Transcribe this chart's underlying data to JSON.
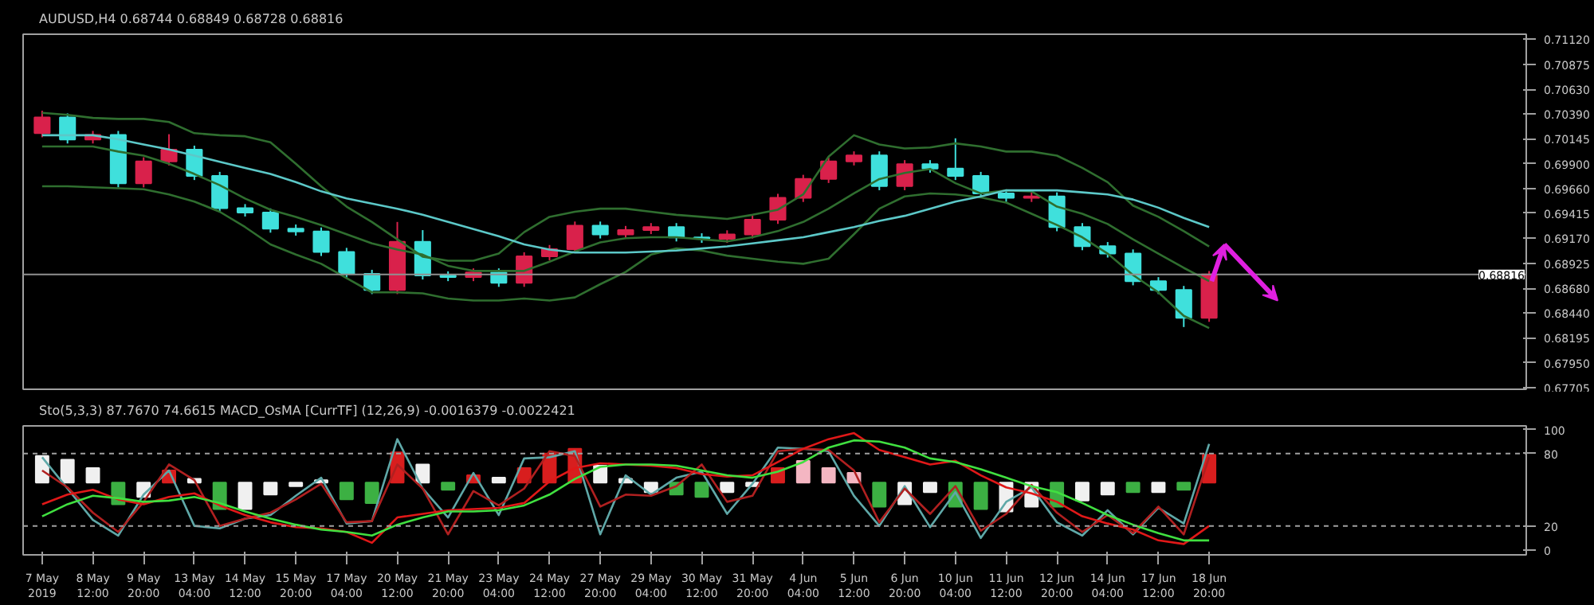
{
  "chart_data": [
    {
      "type": "candlestick",
      "title": "AUDUSD,H4  0.68744 0.68849 0.68728 0.68816",
      "ylim": [
        0.6769,
        0.7117
      ],
      "tick_labels": "y",
      "categories": [
        null,
        null,
        null,
        null,
        null,
        null,
        null,
        null,
        null,
        null,
        null,
        null,
        null,
        null,
        null,
        null,
        null,
        null,
        null,
        null,
        null,
        null,
        null,
        null,
        null,
        null,
        null,
        null,
        null,
        null,
        null,
        null,
        null,
        null,
        null,
        null,
        null,
        null,
        null,
        null,
        null,
        null,
        null,
        null,
        null,
        null,
        null
      ],
      "yticks": [
        {
          "value": 0.7112,
          "label": "0.71120"
        },
        0.70875,
        {
          "value": 0.7063,
          "label": "0.70630"
        },
        {
          "value": 0.7039,
          "label": "0.70390"
        },
        0.70145,
        {
          "value": 0.699,
          "label": "0.69900"
        },
        {
          "value": 0.6966,
          "label": "0.69660"
        },
        0.69415,
        {
          "value": 0.6917,
          "label": "0.69170"
        },
        0.68925,
        {
          "value": 0.6868,
          "label": "0.68680"
        },
        {
          "value": 0.6844,
          "label": "0.68440"
        },
        0.68195,
        {
          "value": 0.6795,
          "label": "0.67950"
        },
        0.67705
      ],
      "ref_lines": [
        {
          "axis": "y",
          "value": 0.68816,
          "label": "0.68816",
          "color": "#909090"
        }
      ],
      "ohlc": [
        [
          0.702,
          0.7042,
          0.7016,
          0.70354
        ],
        [
          0.70354,
          0.70394,
          0.70099,
          0.70139
        ],
        [
          0.70139,
          0.70222,
          0.70099,
          0.70182
        ],
        [
          0.70182,
          0.70222,
          0.69669,
          0.69709
        ],
        [
          0.69709,
          0.69964,
          0.69669,
          0.69924
        ],
        [
          0.69924,
          0.7019,
          0.69884,
          0.70038
        ],
        [
          0.70038,
          0.70078,
          0.69741,
          0.69781
        ],
        [
          0.69781,
          0.69821,
          0.69425,
          0.69465
        ],
        [
          0.69465,
          0.69505,
          0.69383,
          0.69423
        ],
        [
          0.69423,
          0.69463,
          0.69225,
          0.69265
        ],
        [
          0.69265,
          0.69305,
          0.69196,
          0.69236
        ],
        [
          0.69236,
          0.69276,
          0.68996,
          0.69036
        ],
        [
          0.69036,
          0.69076,
          0.68781,
          0.68821
        ],
        [
          0.68821,
          0.68861,
          0.68623,
          0.68663
        ],
        [
          0.68663,
          0.6933,
          0.68623,
          0.69136
        ],
        [
          0.69136,
          0.6925,
          0.68766,
          0.68806
        ],
        [
          0.68806,
          0.68846,
          0.6875,
          0.6879
        ],
        [
          0.6879,
          0.68875,
          0.6875,
          0.68835
        ],
        [
          0.68835,
          0.68875,
          0.68694,
          0.68734
        ],
        [
          0.68734,
          0.69033,
          0.68694,
          0.68993
        ],
        [
          0.68993,
          0.69104,
          0.68953,
          0.69064
        ],
        [
          0.69064,
          0.69334,
          0.69024,
          0.69294
        ],
        [
          0.69294,
          0.69334,
          0.69168,
          0.69208
        ],
        [
          0.69208,
          0.69291,
          0.69168,
          0.69251
        ],
        [
          0.69251,
          0.69319,
          0.69211,
          0.69279
        ],
        [
          0.69279,
          0.69319,
          0.69139,
          0.69179
        ],
        [
          0.69179,
          0.69219,
          0.69125,
          0.69165
        ],
        [
          0.69165,
          0.69248,
          0.69125,
          0.69208
        ],
        [
          0.69208,
          0.69391,
          0.69168,
          0.69351
        ],
        [
          0.69351,
          0.69606,
          0.69311,
          0.69566
        ],
        [
          0.69566,
          0.69792,
          0.69526,
          0.69752
        ],
        [
          0.69752,
          0.69964,
          0.69712,
          0.69924
        ],
        [
          0.69924,
          0.70022,
          0.69884,
          0.69982
        ],
        [
          0.69982,
          0.70022,
          0.69641,
          0.69681
        ],
        [
          0.69681,
          0.69936,
          0.69641,
          0.69896
        ],
        [
          0.69896,
          0.69936,
          0.69813,
          0.69853
        ],
        [
          0.69853,
          0.7015,
          0.69741,
          0.69781
        ],
        [
          0.69781,
          0.69821,
          0.69569,
          0.69609
        ],
        [
          0.69609,
          0.69649,
          0.69526,
          0.69566
        ],
        [
          0.69566,
          0.6962,
          0.69526,
          0.6958
        ],
        [
          0.6958,
          0.6962,
          0.69239,
          0.69279
        ],
        [
          0.69279,
          0.69319,
          0.69053,
          0.69093
        ],
        [
          0.69093,
          0.69133,
          0.68981,
          0.69021
        ],
        [
          0.69021,
          0.69061,
          0.68709,
          0.68749
        ],
        [
          0.68749,
          0.68789,
          0.68623,
          0.68663
        ],
        [
          0.68663,
          0.68703,
          0.683,
          0.68391
        ],
        [
          0.68391,
          0.68849,
          0.68351,
          0.68816
        ]
      ],
      "colors": [
        "#d9214b",
        "#3fe0dc",
        "#d9214b",
        "#3fe0dc",
        "#d9214b",
        "#d9214b",
        "#3fe0dc",
        "#3fe0dc",
        "#3fe0dc",
        "#3fe0dc",
        "#3fe0dc",
        "#3fe0dc",
        "#3fe0dc",
        "#3fe0dc",
        "#d9214b",
        "#3fe0dc",
        "#3fe0dc",
        "#d9214b",
        "#3fe0dc",
        "#d9214b",
        "#d9214b",
        "#d9214b",
        "#3fe0dc",
        "#d9214b",
        "#d9214b",
        "#3fe0dc",
        "#3fe0dc",
        "#d9214b",
        "#d9214b",
        "#d9214b",
        "#d9214b",
        "#d9214b",
        "#d9214b",
        "#3fe0dc",
        "#d9214b",
        "#3fe0dc",
        "#3fe0dc",
        "#3fe0dc",
        "#3fe0dc",
        "#d9214b",
        "#3fe0dc",
        "#3fe0dc",
        "#3fe0dc",
        "#3fe0dc",
        "#3fe0dc",
        "#3fe0dc",
        "#d9214b"
      ],
      "series": [
        {
          "type": "line",
          "color": "#2f6e2f",
          "values": [
            0.704,
            0.7038,
            0.7035,
            0.7034,
            0.7034,
            0.7031,
            0.702,
            0.7018,
            0.7017,
            0.7011,
            0.699,
            0.6968,
            0.6948,
            0.6933,
            0.6916,
            0.6899,
            0.6895,
            0.6895,
            0.6902,
            0.6923,
            0.6938,
            0.6943,
            0.6946,
            0.6946,
            0.6943,
            0.694,
            0.6938,
            0.6936,
            0.694,
            0.6945,
            0.696,
            0.6997,
            0.7018,
            0.7009,
            0.7005,
            0.7006,
            0.701,
            0.7007,
            0.7002,
            0.7002,
            0.6998,
            0.6986,
            0.6972,
            0.6949,
            0.6938,
            0.6924,
            0.6909
          ]
        },
        {
          "type": "line",
          "color": "#2f6e2f",
          "values": [
            0.6968,
            0.6968,
            0.6967,
            0.6966,
            0.6965,
            0.696,
            0.6953,
            0.6943,
            0.6928,
            0.6911,
            0.6901,
            0.6892,
            0.6878,
            0.6864,
            0.6864,
            0.6863,
            0.6858,
            0.6856,
            0.6856,
            0.6858,
            0.6856,
            0.6859,
            0.6872,
            0.6884,
            0.6901,
            0.6907,
            0.6905,
            0.69,
            0.6897,
            0.6894,
            0.6892,
            0.6897,
            0.6921,
            0.6946,
            0.6958,
            0.6961,
            0.696,
            0.6957,
            0.6952,
            0.6941,
            0.693,
            0.6918,
            0.6902,
            0.6881,
            0.6864,
            0.6841,
            0.6829
          ]
        },
        {
          "type": "line",
          "color": "#2f6e2f",
          "values": [
            0.7007,
            0.7007,
            0.7007,
            0.7002,
            0.6998,
            0.699,
            0.698,
            0.6969,
            0.6956,
            0.6945,
            0.6938,
            0.693,
            0.6921,
            0.6912,
            0.6906,
            0.6901,
            0.689,
            0.6885,
            0.6885,
            0.6885,
            0.6894,
            0.6904,
            0.6913,
            0.6917,
            0.6918,
            0.6918,
            0.6916,
            0.6914,
            0.6918,
            0.6924,
            0.6933,
            0.6946,
            0.6961,
            0.6975,
            0.6981,
            0.6985,
            0.6971,
            0.6961,
            0.6964,
            0.6963,
            0.6948,
            0.6941,
            0.6931,
            0.6916,
            0.6902,
            0.6888,
            0.6875
          ]
        },
        {
          "type": "line",
          "color": "#5cc8c8",
          "values": [
            0.7018,
            0.7018,
            0.7018,
            0.7014,
            0.7009,
            0.7004,
            0.6998,
            0.6992,
            0.6986,
            0.698,
            0.6972,
            0.6963,
            0.6956,
            0.6951,
            0.6946,
            0.694,
            0.6933,
            0.6926,
            0.6919,
            0.6911,
            0.6906,
            0.6903,
            0.6903,
            0.6903,
            0.6904,
            0.6905,
            0.6907,
            0.6909,
            0.6912,
            0.6915,
            0.6918,
            0.6923,
            0.6928,
            0.6934,
            0.6939,
            0.6946,
            0.6953,
            0.6958,
            0.6964,
            0.6964,
            0.6964,
            0.6962,
            0.696,
            0.6955,
            0.6947,
            0.6937,
            0.6928
          ]
        }
      ]
    },
    {
      "type": "bar",
      "title": "Sto(5,3,3) 87.7670 74.6615  MACD_OsMA [CurrTF] (12,26,9) -0.0016379 -0.0022421",
      "ylim": [
        -4,
        103
      ],
      "categories": [
        "7 May 2019",
        null,
        "8 May 12:00",
        null,
        "9 May 20:00",
        null,
        "13 May 04:00",
        null,
        "14 May 12:00",
        null,
        "15 May 20:00",
        null,
        "17 May 04:00",
        null,
        "20 May 12:00",
        null,
        "21 May 20:00",
        null,
        "23 May 04:00",
        null,
        "24 May 12:00",
        null,
        "27 May 20:00",
        null,
        "29 May 04:00",
        null,
        "30 May 12:00",
        null,
        "31 May 20:00",
        null,
        "4 Jun 04:00",
        null,
        "5 Jun 12:00",
        null,
        "6 Jun 20:00",
        null,
        "10 Jun 04:00",
        null,
        "11 Jun 12:00",
        null,
        "12 Jun 20:00",
        null,
        "14 Jun 04:00",
        null,
        "17 Jun 12:00",
        null,
        "18 Jun 20:00"
      ],
      "yticks": [
        0,
        20,
        80,
        100
      ],
      "ref_lines": [
        {
          "axis": "y",
          "value": 20,
          "color": "#a0a0a0",
          "line_style": "dashed"
        },
        {
          "axis": "y",
          "value": 80,
          "color": "#a0a0a0",
          "line_style": "dashed"
        }
      ],
      "base": [
        56,
        56,
        56,
        56,
        56,
        56,
        56,
        56,
        56,
        56,
        56,
        56,
        56,
        56,
        56,
        56,
        56,
        56,
        56,
        56,
        56,
        56,
        56,
        56,
        56,
        56,
        56,
        56,
        56,
        56,
        56,
        56,
        56,
        56,
        56,
        56,
        56,
        56,
        56,
        56,
        56,
        56,
        56,
        56,
        56,
        56,
        56
      ],
      "values": [
        22,
        19,
        12,
        -18,
        -12,
        10,
        3,
        -22,
        -22,
        -10,
        -3,
        2,
        -14,
        -17,
        25,
        15,
        -6,
        6,
        4,
        12,
        24,
        28,
        14,
        3,
        -8,
        -10,
        -12,
        -8,
        -3,
        12,
        18,
        12,
        8,
        -20,
        -18,
        -8,
        -20,
        -22,
        -24,
        -20,
        -20,
        -15,
        -10,
        -8,
        -8,
        -6,
        23
      ],
      "colors": [
        "#f0f0f0",
        "#f0f0f0",
        "#f0f0f0",
        "#3cb043",
        "#f0f0f0",
        "#d81e1e",
        "#f0f0f0",
        "#3cb043",
        "#f0f0f0",
        "#f0f0f0",
        "#f0f0f0",
        "#f0f0f0",
        "#3cb043",
        "#3cb043",
        "#d81e1e",
        "#f0f0f0",
        "#3cb043",
        "#d81e1e",
        "#f0f0f0",
        "#d81e1e",
        "#d81e1e",
        "#d81e1e",
        "#f0f0f0",
        "#f0f0f0",
        "#f0f0f0",
        "#3cb043",
        "#3cb043",
        "#f0f0f0",
        "#f0f0f0",
        "#d81e1e",
        "#f4b6c2",
        "#f4b6c2",
        "#f4b6c2",
        "#3cb043",
        "#f0f0f0",
        "#f0f0f0",
        "#3cb043",
        "#3cb043",
        "#f0f0f0",
        "#f0f0f0",
        "#3cb043",
        "#f0f0f0",
        "#f0f0f0",
        "#3cb043",
        "#f0f0f0",
        "#3cb043",
        "#d81e1e"
      ],
      "series": [
        {
          "type": "line",
          "color": "#5fa8a8",
          "values": [
            77,
            51,
            25,
            12,
            46,
            66,
            20,
            18,
            26,
            29,
            45,
            60,
            22,
            24,
            92,
            51,
            27,
            64,
            29,
            76,
            77,
            82,
            13,
            62,
            46,
            60,
            65,
            30,
            55,
            85,
            84,
            82,
            45,
            20,
            53,
            19,
            48,
            10,
            40,
            52,
            23,
            12,
            33,
            13,
            35,
            22,
            88
          ]
        },
        {
          "type": "line",
          "color": "#b02020",
          "values": [
            66,
            52,
            31,
            15,
            40,
            71,
            58,
            20,
            26,
            31,
            42,
            55,
            23,
            24,
            71,
            51,
            13,
            49,
            37,
            51,
            82,
            78,
            36,
            46,
            45,
            53,
            71,
            40,
            45,
            82,
            84,
            83,
            66,
            23,
            51,
            30,
            53,
            16,
            30,
            54,
            31,
            15,
            29,
            14,
            36,
            13,
            77
          ]
        },
        {
          "type": "line",
          "color": "#e01818",
          "values": [
            38,
            46,
            50,
            42,
            38,
            44,
            47,
            37,
            29,
            23,
            19,
            18,
            15,
            6,
            27,
            30,
            33,
            34,
            35,
            39,
            57,
            68,
            72,
            71,
            70,
            68,
            63,
            61,
            62,
            73,
            84,
            92,
            97,
            83,
            77,
            71,
            74,
            62,
            52,
            47,
            40,
            28,
            22,
            17,
            8,
            5,
            20
          ]
        },
        {
          "type": "line",
          "color": "#40e040",
          "values": [
            28,
            38,
            45,
            43,
            40,
            41,
            44,
            39,
            32,
            26,
            21,
            17,
            15,
            12,
            21,
            27,
            32,
            32,
            33,
            37,
            46,
            59,
            69,
            71,
            71,
            70,
            66,
            62,
            60,
            65,
            73,
            85,
            91,
            90,
            85,
            76,
            73,
            67,
            60,
            53,
            48,
            39,
            29,
            21,
            14,
            8,
            8
          ]
        }
      ]
    }
  ]
}
